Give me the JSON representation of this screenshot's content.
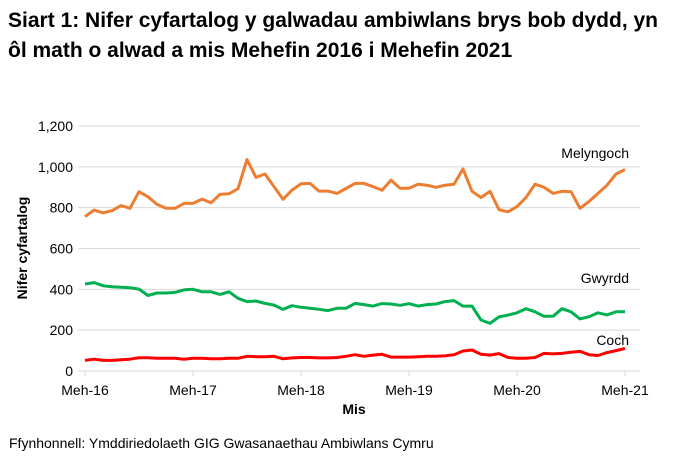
{
  "title": "Siart 1: Nifer cyfartalog y galwadau ambiwlans brys bob dydd, yn ôl math o alwad a mis Mehefin 2016 i Mehefin 2021",
  "source": "Ffynhonnell: Ymddiriedolaeth GIG Gwasanaethau Ambiwlans Cymru",
  "chart_data": {
    "type": "line",
    "title": "Siart 1: Nifer cyfartalog y galwadau ambiwlans brys bob dydd, yn ôl math o alwad a mis Mehefin 2016 i Mehefin 2021",
    "xlabel": "Mis",
    "ylabel": "Nifer cyfartalog",
    "ylim": [
      0,
      1200
    ],
    "yticks": [
      0,
      200,
      400,
      600,
      800,
      1000,
      1200
    ],
    "ytick_labels": [
      "0",
      "200",
      "400",
      "600",
      "800",
      "1,000",
      "1,200"
    ],
    "xtick_labels": [
      "Meh-16",
      "Meh-17",
      "Meh-18",
      "Meh-19",
      "Meh-20",
      "Meh-21"
    ],
    "x_start": "Jun 2016",
    "x_end": "Jun 2021",
    "months": 61,
    "grid": true,
    "legend": "inline labels at right end of lines",
    "series": [
      {
        "name": "Melyngoch",
        "color": "#ED7D31",
        "values": [
          756,
          788,
          775,
          785,
          810,
          797,
          878,
          853,
          816,
          797,
          797,
          821,
          821,
          842,
          824,
          865,
          868,
          893,
          1036,
          948,
          965,
          903,
          841,
          886,
          917,
          919,
          881,
          881,
          870,
          894,
          919,
          919,
          903,
          885,
          935,
          895,
          895,
          915,
          910,
          900,
          910,
          915,
          990,
          880,
          850,
          880,
          790,
          780,
          805,
          850,
          915,
          900,
          870,
          880,
          878,
          797,
          830,
          870,
          910,
          965,
          987
        ]
      },
      {
        "name": "Gwyrdd",
        "color": "#00B050",
        "values": [
          426,
          433,
          418,
          413,
          410,
          408,
          401,
          370,
          382,
          382,
          385,
          397,
          400,
          388,
          388,
          375,
          388,
          356,
          340,
          343,
          331,
          323,
          302,
          320,
          312,
          307,
          302,
          296,
          307,
          307,
          331,
          325,
          318,
          330,
          328,
          322,
          330,
          318,
          325,
          328,
          340,
          345,
          318,
          318,
          250,
          233,
          265,
          274,
          285,
          305,
          290,
          268,
          268,
          305,
          290,
          255,
          266,
          285,
          275,
          290,
          290
        ]
      },
      {
        "name": "Coch",
        "color": "#FF0000",
        "values": [
          52,
          58,
          52,
          52,
          55,
          58,
          65,
          65,
          62,
          62,
          62,
          58,
          62,
          62,
          60,
          60,
          62,
          62,
          72,
          70,
          70,
          72,
          60,
          64,
          66,
          66,
          64,
          64,
          66,
          72,
          80,
          72,
          78,
          82,
          68,
          68,
          68,
          70,
          72,
          72,
          74,
          80,
          98,
          103,
          82,
          78,
          85,
          66,
          62,
          62,
          66,
          86,
          84,
          86,
          92,
          96,
          80,
          76,
          90,
          100,
          110
        ]
      }
    ]
  }
}
